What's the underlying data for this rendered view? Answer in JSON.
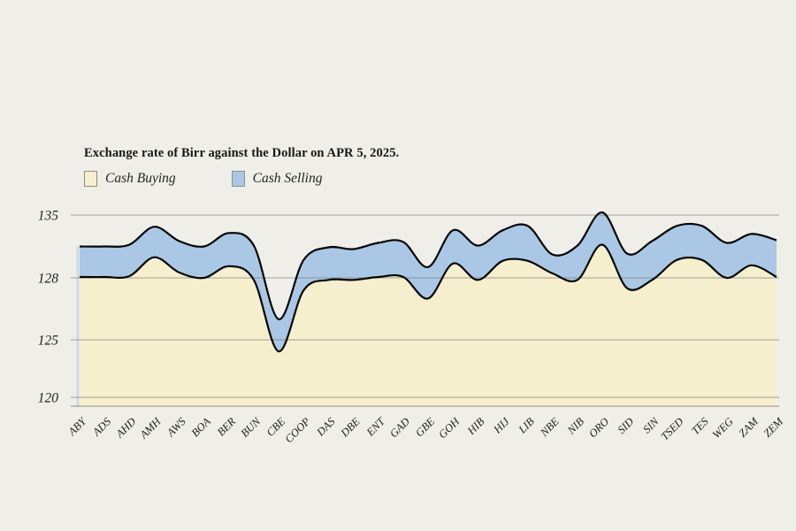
{
  "title": "Exchange rate of Birr against the Dollar on APR 5, 2025.",
  "legend": [
    {
      "label": "Cash Buying",
      "color": "#f6efce"
    },
    {
      "label": "Cash Selling",
      "color": "#aac8e6"
    }
  ],
  "chart_data": {
    "type": "area",
    "title": "Exchange rate of Birr against the Dollar on APR 5, 2025.",
    "xlabel": "",
    "ylabel": "",
    "categories": [
      "ABY",
      "ADS",
      "AHD",
      "AMH",
      "AWS",
      "BOA",
      "BER",
      "BUN",
      "CBE",
      "COOP",
      "DAS",
      "DBE",
      "ENT",
      "GAD",
      "GBE",
      "GOH",
      "HIB",
      "HIJ",
      "LIB",
      "NBE",
      "NIB",
      "ORO",
      "SID",
      "SIN",
      "TSED",
      "TES",
      "WEG",
      "ZAM",
      "ZEM"
    ],
    "series": [
      {
        "name": "Cash Buying",
        "color": "#f6efce",
        "values": [
          128.1,
          128.1,
          128.2,
          130.3,
          128.6,
          128.0,
          129.3,
          127.9,
          124.0,
          127.4,
          127.9,
          127.9,
          128.1,
          128.1,
          127.0,
          129.6,
          127.9,
          129.9,
          129.9,
          128.5,
          127.9,
          131.7,
          127.5,
          127.9,
          130.0,
          130.0,
          128.0,
          129.4,
          128.1
        ]
      },
      {
        "name": "Cash Selling",
        "color": "#aac8e6",
        "values": [
          131.5,
          131.5,
          131.7,
          133.7,
          132.1,
          131.5,
          133.0,
          131.6,
          126.0,
          130.0,
          131.4,
          131.2,
          131.9,
          132.0,
          129.2,
          133.3,
          131.6,
          133.3,
          133.8,
          130.6,
          131.6,
          135.3,
          130.7,
          132.1,
          133.8,
          133.8,
          131.9,
          132.9,
          132.2
        ]
      }
    ],
    "y_ticks": [
      135,
      128,
      125,
      120
    ],
    "ylim": [
      120,
      135
    ],
    "grid": true,
    "legend_position": "top-left",
    "line_color": "#050505",
    "grid_color": "#76756c",
    "tick_label_color": "#22211f",
    "background": "#f0eee8",
    "x_tick_rotation_deg": -45
  }
}
